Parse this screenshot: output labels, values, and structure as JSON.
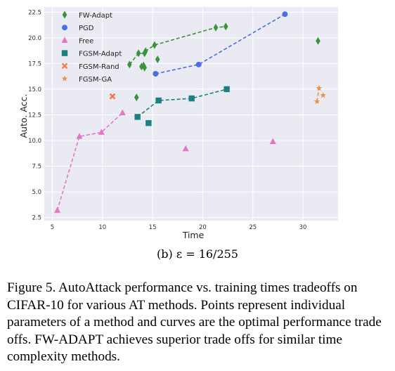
{
  "subcaption": "(b) ε = 16/255",
  "caption": {
    "figure_label": "Figure 5.",
    "text": "AutoAttack performance vs. training times tradeoffs on CIFAR-10 for various AT methods. Points represent individual parameters of a method and curves are the optimal performance trade offs. FW-ADAPT achieves superior trade offs for similar time complexity methods."
  },
  "chart_data": {
    "type": "scatter",
    "xlabel": "Time",
    "ylabel": "Auto. Acc.",
    "xlim": [
      4.2,
      33.5
    ],
    "ylim": [
      2.2,
      23.0
    ],
    "xticks": [
      5,
      10,
      15,
      20,
      25,
      30
    ],
    "yticks": [
      2.5,
      5.0,
      7.5,
      10.0,
      12.5,
      15.0,
      17.5,
      20.0,
      22.5
    ],
    "grid": true,
    "legend_position": "top-left",
    "series": [
      {
        "name": "FW-Adapt",
        "color": "#3a923a",
        "marker": "diamond",
        "points": [
          [
            12.7,
            17.4
          ],
          [
            13.6,
            18.5
          ],
          [
            14.2,
            18.5
          ],
          [
            14.3,
            18.7
          ],
          [
            15.2,
            19.3
          ],
          [
            21.3,
            21.0
          ],
          [
            22.3,
            21.1
          ],
          [
            13.4,
            14.2
          ],
          [
            13.9,
            17.2
          ],
          [
            14.1,
            17.3
          ],
          [
            14.2,
            17.1
          ],
          [
            15.5,
            17.9
          ],
          [
            31.5,
            19.7
          ]
        ],
        "frontier": [
          [
            12.7,
            17.4
          ],
          [
            13.6,
            18.5
          ],
          [
            14.2,
            18.5
          ],
          [
            14.3,
            18.7
          ],
          [
            15.2,
            19.3
          ],
          [
            21.3,
            21.0
          ],
          [
            22.3,
            21.1
          ]
        ]
      },
      {
        "name": "PGD",
        "color": "#4a6fe3",
        "marker": "circle",
        "points": [
          [
            15.3,
            16.5
          ],
          [
            19.6,
            17.4
          ],
          [
            28.2,
            22.3
          ]
        ],
        "frontier": [
          [
            15.3,
            16.5
          ],
          [
            19.6,
            17.4
          ],
          [
            28.2,
            22.3
          ]
        ]
      },
      {
        "name": "Free",
        "color": "#e377c2",
        "marker": "triangle",
        "points": [
          [
            5.5,
            3.2
          ],
          [
            7.7,
            10.4
          ],
          [
            9.9,
            10.8
          ],
          [
            12.0,
            12.7
          ],
          [
            18.3,
            9.2
          ],
          [
            27.0,
            9.9
          ]
        ],
        "frontier": [
          [
            5.5,
            3.2
          ],
          [
            7.7,
            10.4
          ],
          [
            9.9,
            10.8
          ],
          [
            12.0,
            12.7
          ]
        ]
      },
      {
        "name": "FGSM-Adapt",
        "color": "#1a8080",
        "marker": "square",
        "points": [
          [
            13.5,
            12.3
          ],
          [
            15.6,
            13.9
          ],
          [
            18.9,
            14.1
          ],
          [
            22.4,
            15.0
          ],
          [
            14.6,
            11.7
          ]
        ],
        "frontier": [
          [
            13.5,
            12.3
          ],
          [
            15.6,
            13.9
          ],
          [
            18.9,
            14.1
          ],
          [
            22.4,
            15.0
          ]
        ]
      },
      {
        "name": "FGSM-Rand",
        "color": "#f07d42",
        "marker": "x",
        "points": [
          [
            11.0,
            14.3
          ]
        ],
        "frontier": []
      },
      {
        "name": "FGSM-GA",
        "color": "#e8934a",
        "marker": "star",
        "points": [
          [
            31.4,
            13.8
          ],
          [
            31.6,
            15.1
          ],
          [
            32.0,
            14.4
          ]
        ],
        "frontier": [
          [
            31.4,
            13.8
          ],
          [
            31.6,
            15.1
          ]
        ]
      }
    ]
  }
}
